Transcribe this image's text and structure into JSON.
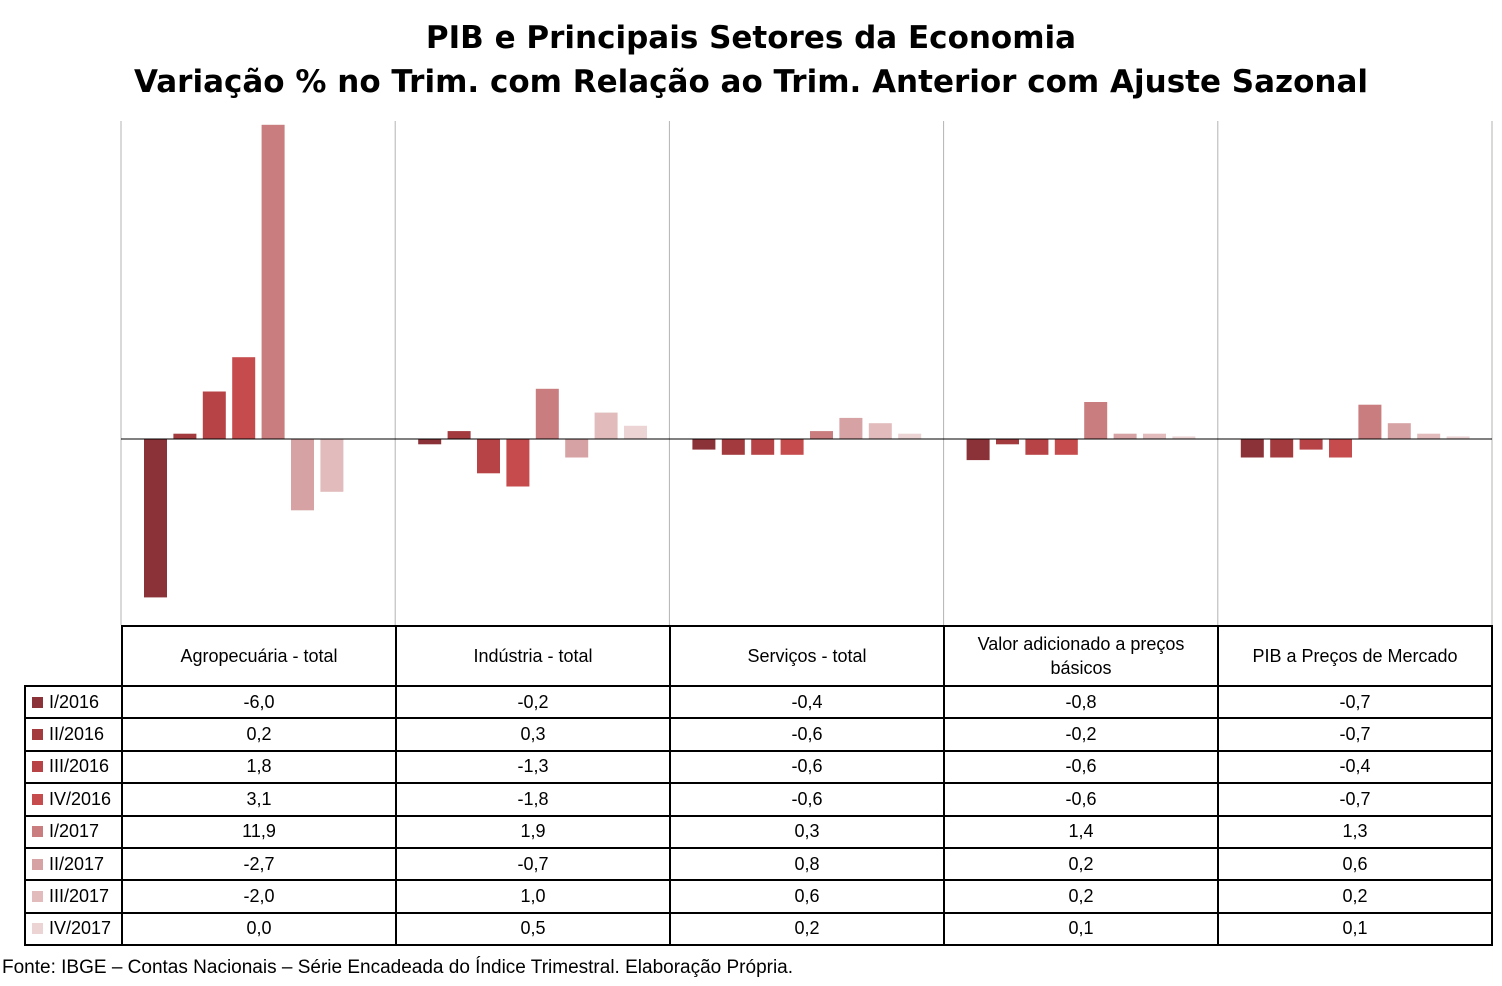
{
  "chart_data": {
    "type": "bar",
    "title": "PIB e Principais Setores da Economia",
    "subtitle": "Variação % no Trim. com Relação ao Trim. Anterior com Ajuste Sazonal",
    "categories": [
      "Agropecuária - total",
      "Indústria - total",
      "Serviços - total",
      "Valor adicionado a preços básicos",
      "PIB a Preços de Mercado"
    ],
    "series": [
      {
        "name": "I/2016",
        "color": "#8b3238",
        "values": [
          -6.0,
          -0.2,
          -0.4,
          -0.8,
          -0.7
        ],
        "labels": [
          "-6,0",
          "-0,2",
          "-0,4",
          "-0,8",
          "-0,7"
        ]
      },
      {
        "name": "II/2016",
        "color": "#a23a3e",
        "values": [
          0.2,
          0.3,
          -0.6,
          -0.2,
          -0.7
        ],
        "labels": [
          "0,2",
          "0,3",
          "-0,6",
          "-0,2",
          "-0,7"
        ]
      },
      {
        "name": "III/2016",
        "color": "#b84346",
        "values": [
          1.8,
          -1.3,
          -0.6,
          -0.6,
          -0.4
        ],
        "labels": [
          "1,8",
          "-1,3",
          "-0,6",
          "-0,6",
          "-0,4"
        ]
      },
      {
        "name": "IV/2016",
        "color": "#c64b4d",
        "values": [
          3.1,
          -1.8,
          -0.6,
          -0.6,
          -0.7
        ],
        "labels": [
          "3,1",
          "-1,8",
          "-0,6",
          "-0,6",
          "-0,7"
        ]
      },
      {
        "name": "I/2017",
        "color": "#c97d7e",
        "values": [
          11.9,
          1.9,
          0.3,
          1.4,
          1.3
        ],
        "labels": [
          "11,9",
          "1,9",
          "0,3",
          "1,4",
          "1,3"
        ]
      },
      {
        "name": "II/2017",
        "color": "#d6a2a3",
        "values": [
          -2.7,
          -0.7,
          0.8,
          0.2,
          0.6
        ],
        "labels": [
          "-2,7",
          "-0,7",
          "0,8",
          "0,2",
          "0,6"
        ]
      },
      {
        "name": "III/2017",
        "color": "#e2bcbd",
        "values": [
          -2.0,
          1.0,
          0.6,
          0.2,
          0.2
        ],
        "labels": [
          "-2,0",
          "1,0",
          "0,6",
          "0,2",
          "0,2"
        ]
      },
      {
        "name": "IV/2017",
        "color": "#ecd4d5",
        "values": [
          0.0,
          0.5,
          0.2,
          0.1,
          0.1
        ],
        "labels": [
          "0,0",
          "0,5",
          "0,2",
          "0,1",
          "0,1"
        ]
      }
    ],
    "ylim": [
      -7,
      12
    ],
    "grid": false,
    "legend": "table-left"
  },
  "source": "Fonte: IBGE – Contas Nacionais – Série Encadeada do Índice Trimestral. Elaboração Própria."
}
